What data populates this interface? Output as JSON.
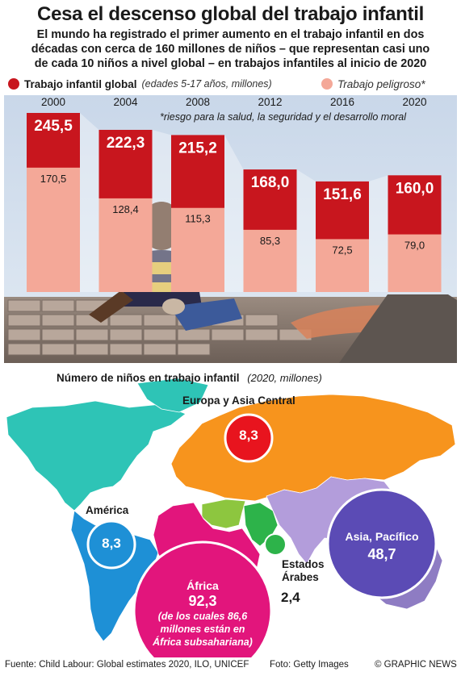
{
  "header": {
    "title": "Cesa el descenso global del trabajo infantil",
    "subtitle_lines": [
      "El mundo ha registrado el primer aumento en el trabajo infantil en dos",
      "décadas con cerca de 160 millones de niños – que representan casi uno",
      "de cada 10 niños a nivel global – en trabajos infantiles al inicio de 2020"
    ]
  },
  "legend": {
    "global_label": "Trabajo infantil global",
    "global_note": "(edades 5-17 años, millones)",
    "hazard_label": "Trabajo peligroso*",
    "global_color": "#c8161e",
    "hazard_color": "#f4a898"
  },
  "footnote": "*riesgo para la salud, la seguridad y el desarrollo moral",
  "chart_data": [
    {
      "type": "bar",
      "categories": [
        "2000",
        "2004",
        "2008",
        "2012",
        "2016",
        "2020"
      ],
      "series": [
        {
          "name": "Trabajo infantil global",
          "values": [
            245.5,
            222.3,
            215.2,
            168.0,
            151.6,
            160.0
          ],
          "labels": [
            "245,5",
            "222,3",
            "215,2",
            "168,0",
            "151,6",
            "160,0"
          ]
        },
        {
          "name": "Trabajo peligroso*",
          "values": [
            170.5,
            128.4,
            115.3,
            85.3,
            72.5,
            79.0
          ],
          "labels": [
            "170,5",
            "128,4",
            "115,3",
            "85,3",
            "72,5",
            "79,0"
          ]
        }
      ],
      "overlap": true,
      "ylim": [
        0,
        260
      ]
    }
  ],
  "map": {
    "title": "Número de niños en trabajo infantil",
    "title_note": "(2020, millones)",
    "regions": [
      {
        "name": "Europa y Asia Central",
        "value": "8,3",
        "color": "#e8141e"
      },
      {
        "name": "América",
        "value": "8,3",
        "color": "#1e90d6"
      },
      {
        "name": "Estados Árabes",
        "value": "2,4",
        "color": "#2db34a"
      },
      {
        "name": "Asia, Pacífico",
        "value": "48,7",
        "color": "#5b4bb5"
      },
      {
        "name": "África",
        "value": "92,3",
        "color": "#e2157c"
      }
    ],
    "africa_note": [
      "(de los cuales 86,6",
      "millones están en",
      "África subsahariana)"
    ]
  },
  "footer": {
    "source": "Fuente: Child Labour: Global estimates 2020, ILO, UNICEF",
    "photo": "Foto: Getty Images",
    "credit": "© GRAPHIC NEWS"
  }
}
